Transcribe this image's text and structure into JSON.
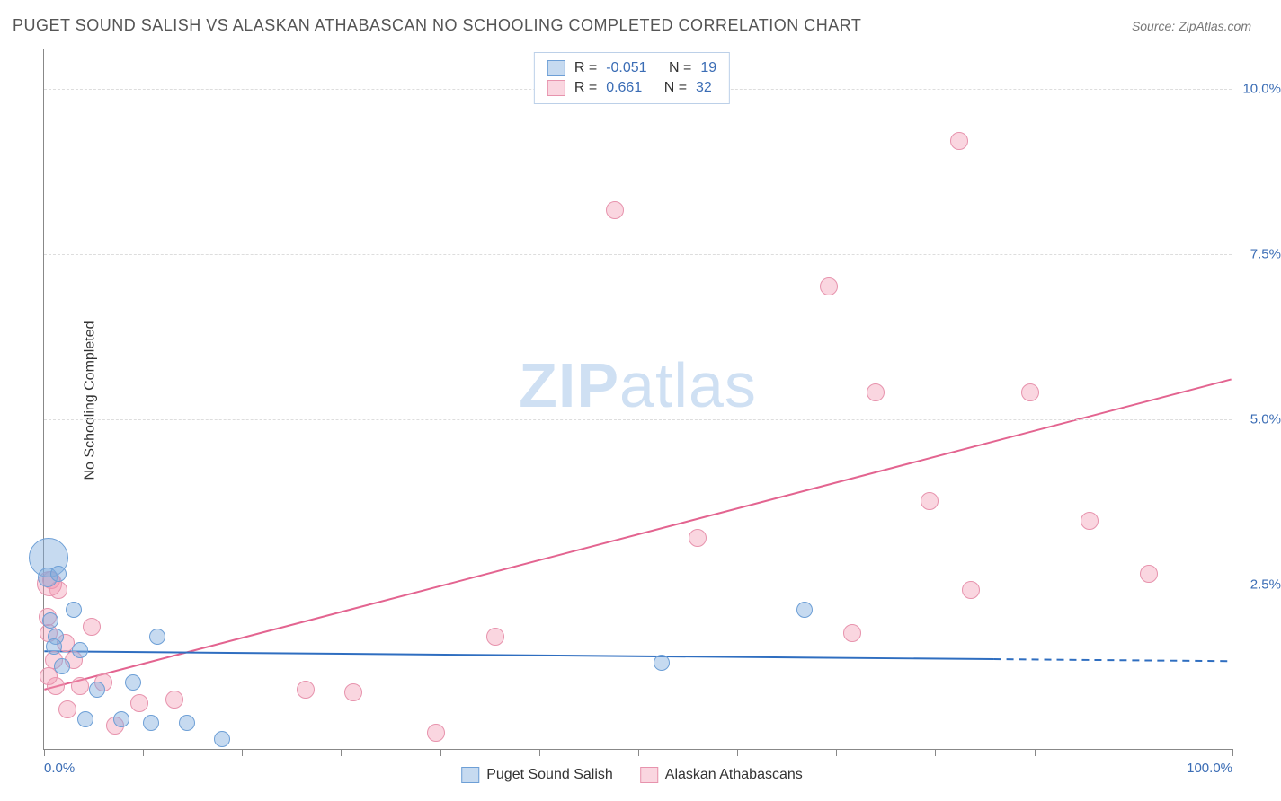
{
  "title": "PUGET SOUND SALISH VS ALASKAN ATHABASCAN NO SCHOOLING COMPLETED CORRELATION CHART",
  "source_label": "Source: ZipAtlas.com",
  "y_axis_label": "No Schooling Completed",
  "watermark_zip": "ZIP",
  "watermark_atlas": "atlas",
  "chart": {
    "type": "scatter",
    "background_color": "#ffffff",
    "grid_color": "#dddddd",
    "axis_color": "#888888",
    "x_axis": {
      "min": 0,
      "max": 100,
      "ticks_every_pct": 8.333,
      "labels": {
        "left": "0.0%",
        "right": "100.0%"
      }
    },
    "y_axis": {
      "min": 0,
      "max": 10.6,
      "gridlines": [
        {
          "value": 2.5,
          "label": "2.5%"
        },
        {
          "value": 5.0,
          "label": "5.0%"
        },
        {
          "value": 7.5,
          "label": "7.5%"
        },
        {
          "value": 10.0,
          "label": "10.0%"
        }
      ]
    },
    "label_fontsize": 15,
    "label_color": "#3b6db5"
  },
  "series": {
    "blue": {
      "label": "Puget Sound Salish",
      "fill_color": "rgba(129,172,222,0.45)",
      "stroke_color": "#6d9fd6",
      "r_value": "-0.051",
      "n_value": "19",
      "trend": {
        "x1": 0,
        "y1": 1.48,
        "x2": 100,
        "y2": 1.33,
        "color": "#2f6ec0",
        "width": 2,
        "dash_after_x": 80
      },
      "points": [
        {
          "x": 0.4,
          "y": 2.9,
          "r": 22
        },
        {
          "x": 0.3,
          "y": 2.6,
          "r": 11
        },
        {
          "x": 1.2,
          "y": 2.65,
          "r": 9
        },
        {
          "x": 2.5,
          "y": 2.1,
          "r": 9
        },
        {
          "x": 0.5,
          "y": 1.95,
          "r": 9
        },
        {
          "x": 1.0,
          "y": 1.7,
          "r": 9
        },
        {
          "x": 3.0,
          "y": 1.5,
          "r": 9
        },
        {
          "x": 1.5,
          "y": 1.25,
          "r": 9
        },
        {
          "x": 0.8,
          "y": 1.55,
          "r": 9
        },
        {
          "x": 9.5,
          "y": 1.7,
          "r": 9
        },
        {
          "x": 3.5,
          "y": 0.45,
          "r": 9
        },
        {
          "x": 6.5,
          "y": 0.45,
          "r": 9
        },
        {
          "x": 9.0,
          "y": 0.4,
          "r": 9
        },
        {
          "x": 12.0,
          "y": 0.4,
          "r": 9
        },
        {
          "x": 15.0,
          "y": 0.15,
          "r": 9
        },
        {
          "x": 4.5,
          "y": 0.9,
          "r": 9
        },
        {
          "x": 7.5,
          "y": 1.0,
          "r": 9
        },
        {
          "x": 52.0,
          "y": 1.3,
          "r": 9
        },
        {
          "x": 64.0,
          "y": 2.1,
          "r": 9
        }
      ]
    },
    "pink": {
      "label": "Alaskan Athabascans",
      "fill_color": "rgba(242,152,177,0.40)",
      "stroke_color": "#e793ad",
      "r_value": "0.661",
      "n_value": "32",
      "trend": {
        "x1": 0,
        "y1": 0.9,
        "x2": 100,
        "y2": 5.6,
        "color": "#e36490",
        "width": 2
      },
      "points": [
        {
          "x": 48.0,
          "y": 8.15,
          "r": 10
        },
        {
          "x": 77.0,
          "y": 9.2,
          "r": 10
        },
        {
          "x": 66.0,
          "y": 7.0,
          "r": 10
        },
        {
          "x": 70.0,
          "y": 5.4,
          "r": 10
        },
        {
          "x": 83.0,
          "y": 5.4,
          "r": 10
        },
        {
          "x": 74.5,
          "y": 3.75,
          "r": 10
        },
        {
          "x": 88.0,
          "y": 3.45,
          "r": 10
        },
        {
          "x": 93.0,
          "y": 2.65,
          "r": 10
        },
        {
          "x": 78.0,
          "y": 2.4,
          "r": 10
        },
        {
          "x": 68.0,
          "y": 1.75,
          "r": 10
        },
        {
          "x": 55.0,
          "y": 3.2,
          "r": 10
        },
        {
          "x": 38.0,
          "y": 1.7,
          "r": 10
        },
        {
          "x": 33.0,
          "y": 0.25,
          "r": 10
        },
        {
          "x": 26.0,
          "y": 0.85,
          "r": 10
        },
        {
          "x": 22.0,
          "y": 0.9,
          "r": 10
        },
        {
          "x": 11.0,
          "y": 0.75,
          "r": 10
        },
        {
          "x": 8.0,
          "y": 0.7,
          "r": 10
        },
        {
          "x": 6.0,
          "y": 0.35,
          "r": 10
        },
        {
          "x": 5.0,
          "y": 1.0,
          "r": 10
        },
        {
          "x": 4.0,
          "y": 1.85,
          "r": 10
        },
        {
          "x": 3.0,
          "y": 0.95,
          "r": 10
        },
        {
          "x": 2.5,
          "y": 1.35,
          "r": 10
        },
        {
          "x": 2.0,
          "y": 0.6,
          "r": 10
        },
        {
          "x": 1.8,
          "y": 1.6,
          "r": 10
        },
        {
          "x": 1.2,
          "y": 2.4,
          "r": 10
        },
        {
          "x": 1.0,
          "y": 0.95,
          "r": 10
        },
        {
          "x": 0.8,
          "y": 1.35,
          "r": 10
        },
        {
          "x": 0.6,
          "y": 2.55,
          "r": 10
        },
        {
          "x": 0.45,
          "y": 2.5,
          "r": 14
        },
        {
          "x": 0.4,
          "y": 1.1,
          "r": 10
        },
        {
          "x": 0.35,
          "y": 1.75,
          "r": 10
        },
        {
          "x": 0.3,
          "y": 2.0,
          "r": 10
        }
      ]
    }
  },
  "legend_top": {
    "r_label": "R =",
    "n_label": "N ="
  }
}
